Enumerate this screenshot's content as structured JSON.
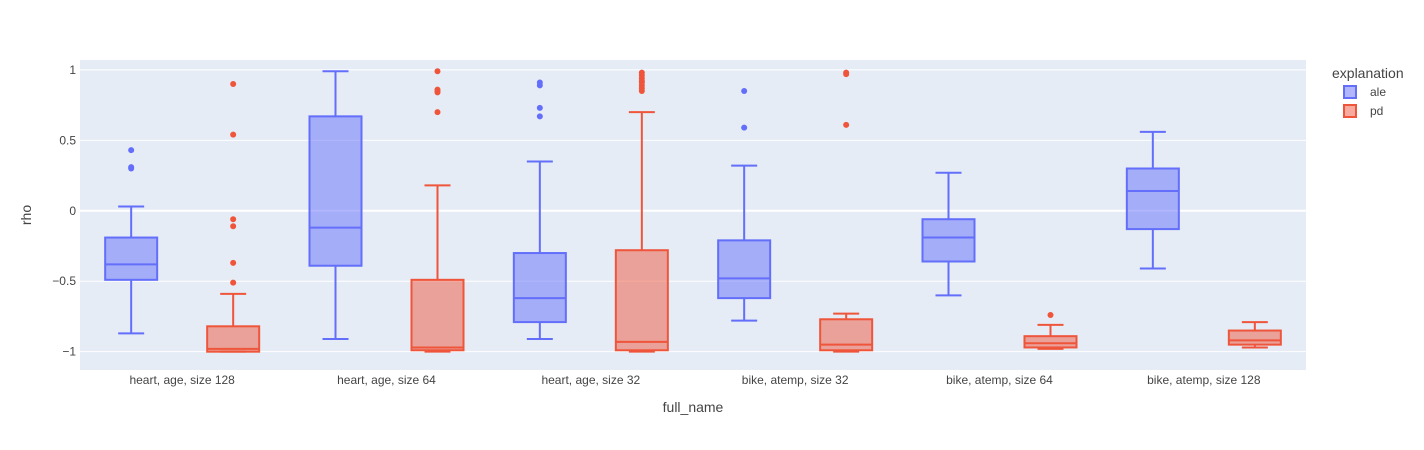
{
  "chart_data": {
    "type": "box",
    "xlabel": "full_name",
    "ylabel": "rho",
    "ylim": [
      -1.13,
      1.07
    ],
    "yticks": [
      1,
      0.5,
      0,
      -0.5,
      -1
    ],
    "ytick_labels": [
      "1",
      "0.5",
      "0",
      "−0.5",
      "−1"
    ],
    "grid": true,
    "legend_title": "explanation",
    "legend_position": "top-right",
    "plot_background": "#e5ecf6",
    "categories": [
      "heart, age, size 128",
      "heart, age, size 64",
      "heart, age, size 32",
      "bike, atemp, size 32",
      "bike, atemp, size 64",
      "bike, atemp, size 128"
    ],
    "series": [
      {
        "name": "ale",
        "color": "#636efa",
        "fill": "rgba(99,110,250,0.5)",
        "boxes": [
          {
            "lower_whisker": -0.87,
            "q1": -0.49,
            "median": -0.38,
            "q3": -0.19,
            "upper_whisker": 0.03,
            "outliers": [
              0.43,
              0.31,
              0.3
            ]
          },
          {
            "lower_whisker": -0.91,
            "q1": -0.39,
            "median": -0.12,
            "q3": 0.67,
            "upper_whisker": 0.99,
            "outliers": []
          },
          {
            "lower_whisker": -0.91,
            "q1": -0.79,
            "median": -0.62,
            "q3": -0.3,
            "upper_whisker": 0.35,
            "outliers": [
              0.91,
              0.89,
              0.73,
              0.67
            ]
          },
          {
            "lower_whisker": -0.78,
            "q1": -0.62,
            "median": -0.48,
            "q3": -0.21,
            "upper_whisker": 0.32,
            "outliers": [
              0.85,
              0.59
            ]
          },
          {
            "lower_whisker": -0.6,
            "q1": -0.36,
            "median": -0.19,
            "q3": -0.06,
            "upper_whisker": 0.27,
            "outliers": []
          },
          {
            "lower_whisker": -0.41,
            "q1": -0.13,
            "median": 0.14,
            "q3": 0.3,
            "upper_whisker": 0.56,
            "outliers": []
          }
        ]
      },
      {
        "name": "pd",
        "color": "#ef553b",
        "fill": "rgba(239,85,59,0.5)",
        "boxes": [
          {
            "lower_whisker": -1.0,
            "q1": -1.0,
            "median": -0.98,
            "q3": -0.82,
            "upper_whisker": -0.59,
            "outliers": [
              0.9,
              0.54,
              -0.06,
              -0.11,
              -0.37,
              -0.51
            ]
          },
          {
            "lower_whisker": -1.0,
            "q1": -0.99,
            "median": -0.97,
            "q3": -0.49,
            "upper_whisker": 0.18,
            "outliers": [
              0.99,
              0.86,
              0.85,
              0.84,
              0.7
            ]
          },
          {
            "lower_whisker": -1.0,
            "q1": -0.99,
            "median": -0.93,
            "q3": -0.28,
            "upper_whisker": 0.7,
            "outliers": [
              0.98,
              0.96,
              0.94,
              0.92,
              0.91,
              0.89,
              0.87,
              0.85
            ]
          },
          {
            "lower_whisker": -1.0,
            "q1": -0.99,
            "median": -0.95,
            "q3": -0.77,
            "upper_whisker": -0.73,
            "outliers": [
              0.98,
              0.97,
              0.61
            ]
          },
          {
            "lower_whisker": -0.98,
            "q1": -0.97,
            "median": -0.94,
            "q3": -0.89,
            "upper_whisker": -0.81,
            "outliers": [
              -0.74
            ]
          },
          {
            "lower_whisker": -0.97,
            "q1": -0.95,
            "median": -0.92,
            "q3": -0.85,
            "upper_whisker": -0.79,
            "outliers": []
          }
        ]
      }
    ]
  }
}
